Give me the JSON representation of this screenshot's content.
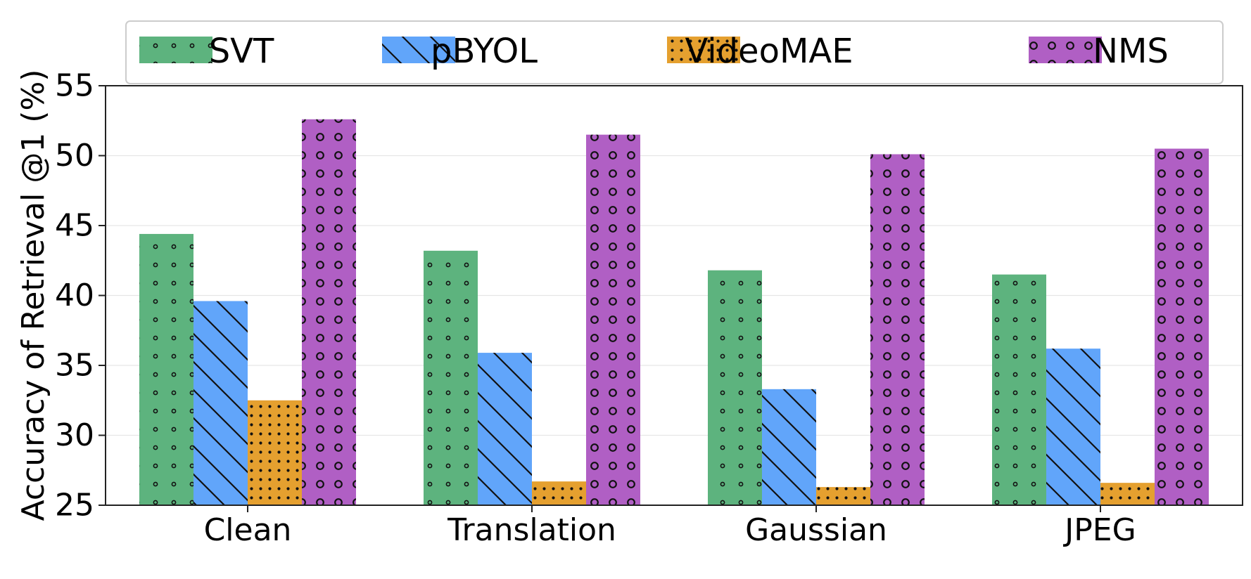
{
  "chart_data": {
    "type": "bar",
    "title": "",
    "xlabel": "",
    "ylabel": "Accuracy of Retrieval @1 (%)",
    "categories": [
      "Clean",
      "Translation",
      "Gaussian",
      "JPEG"
    ],
    "ylim": [
      25,
      55
    ],
    "yticks": [
      "25",
      "30",
      "35",
      "40",
      "45",
      "50",
      "55"
    ],
    "grid": "horizontal, light",
    "legend_position": "top, above plot",
    "series": [
      {
        "name": "SVT",
        "color": "#5db37e",
        "hatch": "small-circles",
        "values": [
          44.4,
          43.2,
          41.8,
          41.5
        ]
      },
      {
        "name": "pBYOL",
        "color": "#61a5fa",
        "hatch": "diagonal-lines",
        "values": [
          39.6,
          35.9,
          33.3,
          36.2
        ]
      },
      {
        "name": "VideoMAE",
        "color": "#e5a02f",
        "hatch": "dense-dots",
        "values": [
          32.5,
          26.7,
          26.3,
          26.6
        ]
      },
      {
        "name": "NMS",
        "color": "#b05fc4",
        "hatch": "rings",
        "values": [
          52.6,
          51.5,
          50.1,
          50.5
        ]
      }
    ]
  }
}
